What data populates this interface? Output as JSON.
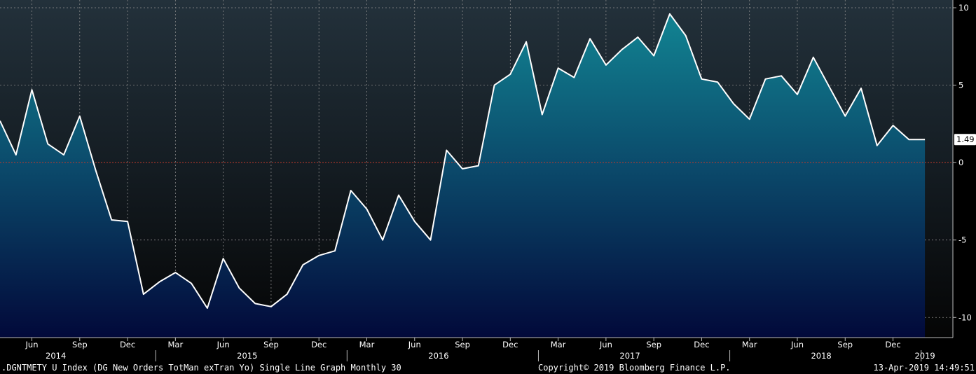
{
  "chart_data": {
    "type": "area",
    "title": "",
    "xlabel": "",
    "ylabel": "",
    "x_start": "2014-03",
    "values": [
      2.7,
      0.5,
      4.7,
      1.2,
      0.5,
      3.0,
      -0.5,
      -3.7,
      -3.8,
      -8.5,
      -7.7,
      -7.1,
      -7.8,
      -9.4,
      -6.2,
      -8.1,
      -9.1,
      -9.3,
      -8.5,
      -6.6,
      -6.0,
      -5.7,
      -1.8,
      -3.0,
      -5.0,
      -2.1,
      -3.8,
      -5.0,
      0.8,
      -0.4,
      -0.2,
      5.0,
      5.7,
      7.8,
      3.1,
      6.1,
      5.5,
      8.0,
      6.3,
      7.3,
      8.1,
      6.9,
      9.6,
      8.2,
      5.4,
      5.2,
      3.8,
      2.8,
      5.4,
      5.6,
      4.4,
      6.8,
      4.9,
      3.0,
      4.8,
      1.1,
      2.4,
      1.49,
      1.49
    ],
    "ylim": [
      -11.3,
      10.5
    ],
    "yticks": [
      10,
      5,
      0,
      -5,
      -10
    ],
    "last_value_label": "1.49",
    "zero_line": true,
    "grid": true,
    "month_labels": [
      "Jun",
      "Sep",
      "Dec",
      "Mar",
      "Jun",
      "Sep",
      "Dec",
      "Mar",
      "Jun",
      "Sep",
      "Dec",
      "Mar",
      "Jun",
      "Sep",
      "Dec",
      "Mar",
      "Jun",
      "Sep",
      "Dec"
    ],
    "year_labels": [
      "2014",
      "2015",
      "2016",
      "2017",
      "2018",
      "2019"
    ]
  },
  "footer": {
    "left": ".DGNTMETY U Index (DG New Orders TotMan exTran Yo) Single Line Graph  Monthly 30",
    "center": "Copyright© 2019 Bloomberg Finance L.P.",
    "right": "13-Apr-2019 14:49:51"
  },
  "colors": {
    "line": "#ffffff",
    "fill_top": "#117f8f",
    "fill_bottom": "#02093a",
    "zero_line": "#c0392b",
    "grid": "#8a8a8a",
    "background_top": "#23313b",
    "background_bottom": "#0a0a0a"
  }
}
